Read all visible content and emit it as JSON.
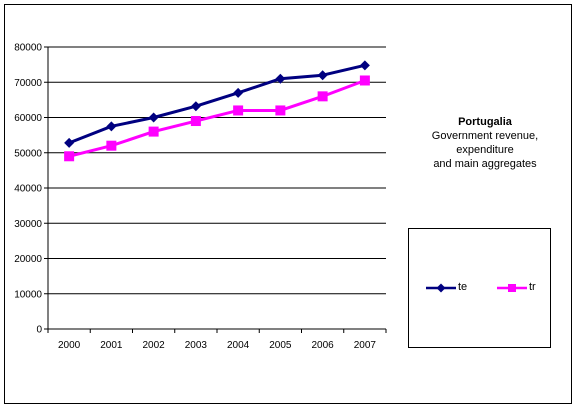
{
  "chart_data": {
    "type": "line",
    "title": "Portugalia",
    "subtitle_lines": [
      "Government revenue,",
      "expenditure",
      "and main aggregates"
    ],
    "categories": [
      "2000",
      "2001",
      "2002",
      "2003",
      "2004",
      "2005",
      "2006",
      "2007"
    ],
    "series": [
      {
        "name": "te",
        "color": "#000080",
        "marker": "diamond",
        "values": [
          52800,
          57500,
          60000,
          63200,
          67000,
          71000,
          72000,
          74800
        ]
      },
      {
        "name": "tr",
        "color": "#ff00ff",
        "marker": "square",
        "values": [
          49000,
          52000,
          56000,
          59000,
          62000,
          62000,
          66000,
          70500
        ]
      }
    ],
    "ylim": [
      0,
      80000
    ],
    "yticks": [
      "0",
      "10000",
      "20000",
      "30000",
      "40000",
      "50000",
      "60000",
      "70000",
      "80000"
    ],
    "grid": true,
    "legend_position": "right"
  }
}
